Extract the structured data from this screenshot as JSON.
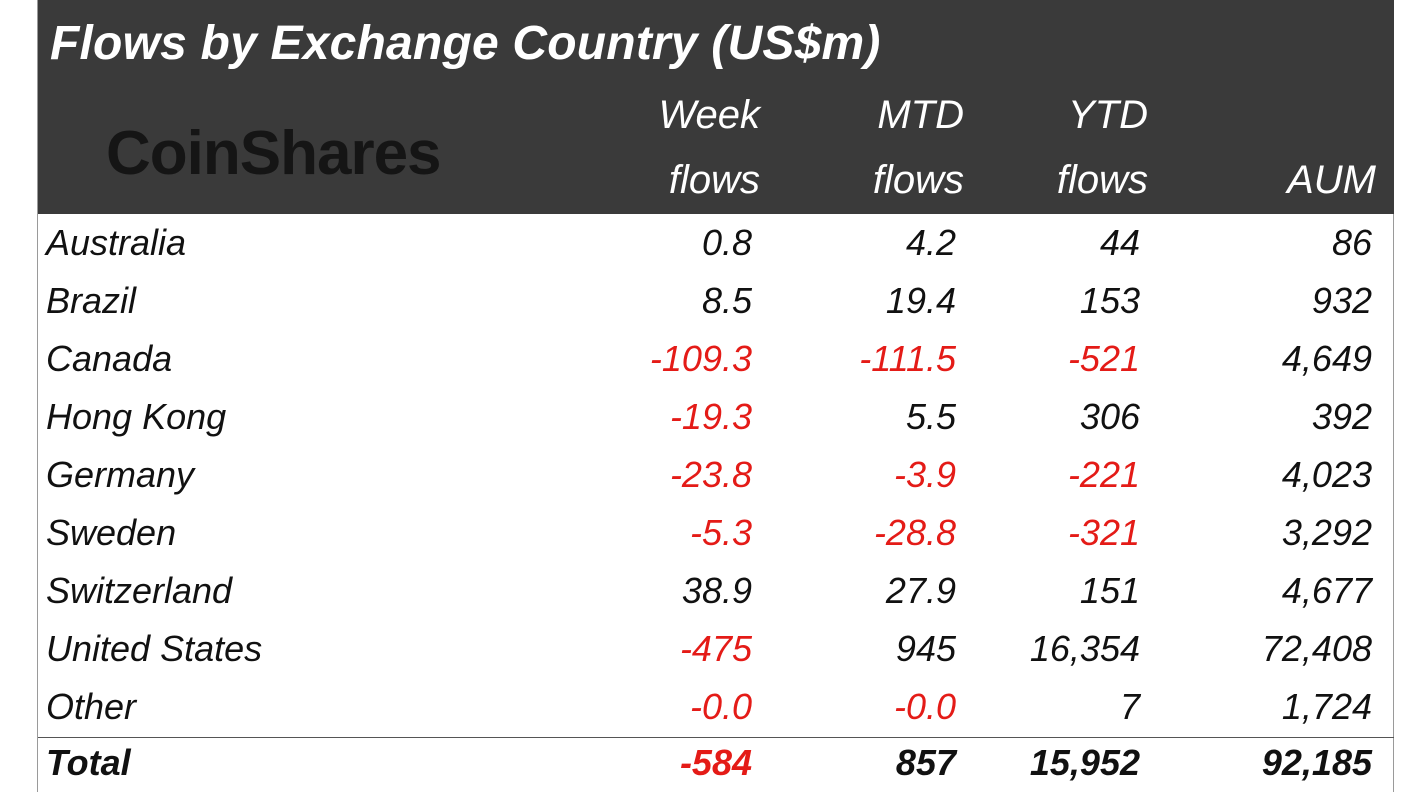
{
  "title": "Flows by Exchange Country (US$m)",
  "logo_text": "CoinShares",
  "columns": [
    {
      "line1": "Week",
      "line2": "flows"
    },
    {
      "line1": "MTD",
      "line2": "flows"
    },
    {
      "line1": "YTD",
      "line2": "flows"
    },
    {
      "line1": "",
      "line2": "AUM"
    }
  ],
  "colors": {
    "header_bg": "#3a3a3a",
    "negative": "#e41b17",
    "text": "#111111"
  },
  "chart_data": {
    "type": "table",
    "title": "Flows by Exchange Country (US$m)",
    "columns": [
      "Week flows",
      "MTD flows",
      "YTD flows",
      "AUM"
    ],
    "rows": [
      {
        "label": "Australia",
        "values": [
          "0.8",
          "4.2",
          "44",
          "86"
        ]
      },
      {
        "label": "Brazil",
        "values": [
          "8.5",
          "19.4",
          "153",
          "932"
        ]
      },
      {
        "label": "Canada",
        "values": [
          "-109.3",
          "-111.5",
          "-521",
          "4,649"
        ]
      },
      {
        "label": "Hong Kong",
        "values": [
          "-19.3",
          "5.5",
          "306",
          "392"
        ]
      },
      {
        "label": "Germany",
        "values": [
          "-23.8",
          "-3.9",
          "-221",
          "4,023"
        ]
      },
      {
        "label": "Sweden",
        "values": [
          "-5.3",
          "-28.8",
          "-321",
          "3,292"
        ]
      },
      {
        "label": "Switzerland",
        "values": [
          "38.9",
          "27.9",
          "151",
          "4,677"
        ]
      },
      {
        "label": "United States",
        "values": [
          "-475",
          "945",
          "16,354",
          "72,408"
        ]
      },
      {
        "label": "Other",
        "values": [
          "-0.0",
          "-0.0",
          "7",
          "1,724"
        ]
      }
    ],
    "total": {
      "label": "Total",
      "values": [
        "-584",
        "857",
        "15,952",
        "92,185"
      ]
    }
  }
}
